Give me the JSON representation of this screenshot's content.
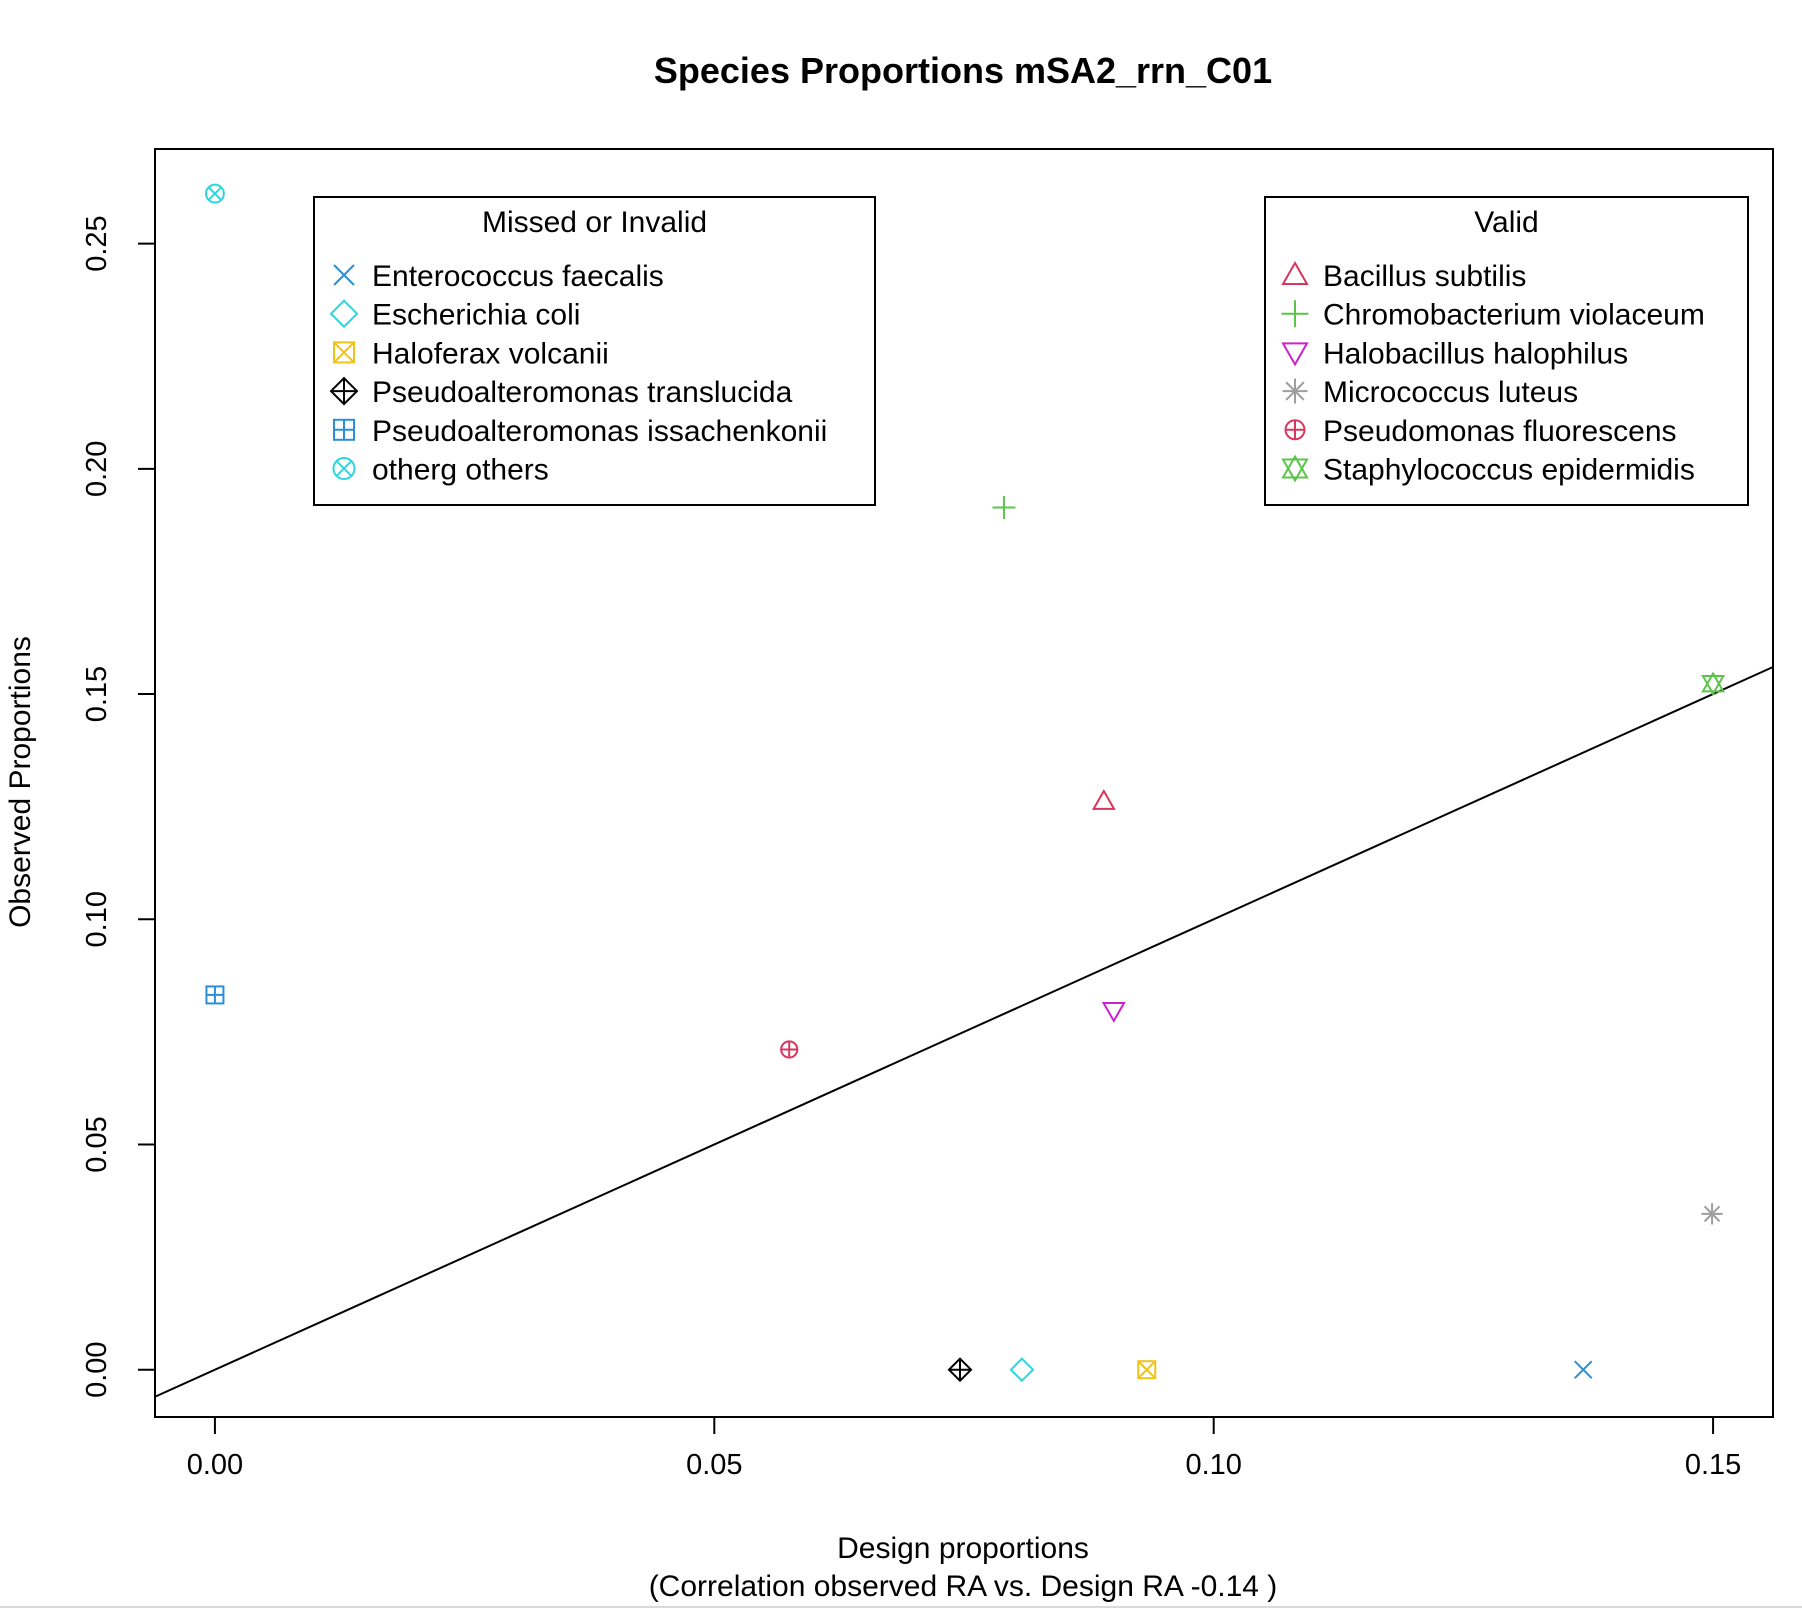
{
  "chart_data": {
    "type": "scatter",
    "title": "Species Proportions mSA2_rrn_C01",
    "xlabel": "Design proportions",
    "subtitle": "(Correlation observed RA vs. Design RA  -0.14 )",
    "ylabel": "Observed Proportions",
    "xlim": [
      -0.006,
      0.156
    ],
    "ylim": [
      -0.0105,
      0.271
    ],
    "x_ticks": [
      0.0,
      0.05,
      0.1,
      0.15
    ],
    "x_tick_labels": [
      "0.00",
      "0.05",
      "0.10",
      "0.15"
    ],
    "y_ticks": [
      0.0,
      0.05,
      0.1,
      0.15,
      0.2,
      0.25
    ],
    "y_tick_labels": [
      "0.00",
      "0.05",
      "0.10",
      "0.15",
      "0.20",
      "0.25"
    ],
    "reference_line": {
      "slope": 1,
      "intercept": 0
    },
    "grid": false,
    "legends": [
      {
        "title": "Missed or Invalid",
        "position": "top-left",
        "entries": [
          {
            "label": "Enterococcus faecalis",
            "symbol": "x",
            "color": "#2a8fd8"
          },
          {
            "label": "Escherichia coli",
            "symbol": "diamond",
            "color": "#2fd5dd"
          },
          {
            "label": "Haloferax volcanii",
            "symbol": "square-x",
            "color": "#f0c21a"
          },
          {
            "label": "Pseudoalteromonas translucida",
            "symbol": "diamond-plus",
            "color": "#000000"
          },
          {
            "label": "Pseudoalteromonas issachenkonii",
            "symbol": "square-plus",
            "color": "#2a8fd8"
          },
          {
            "label": "otherg others",
            "symbol": "circle-x",
            "color": "#2fd5dd"
          }
        ]
      },
      {
        "title": "Valid",
        "position": "top-right",
        "entries": [
          {
            "label": "Bacillus subtilis",
            "symbol": "triangle-up",
            "color": "#d8365f"
          },
          {
            "label": "Chromobacterium violaceum",
            "symbol": "plus",
            "color": "#5cc44a"
          },
          {
            "label": "Halobacillus halophilus",
            "symbol": "triangle-down",
            "color": "#cc22cc"
          },
          {
            "label": "Micrococcus luteus",
            "symbol": "asterisk",
            "color": "#9e9e9e"
          },
          {
            "label": "Pseudomonas fluorescens",
            "symbol": "circle-plus",
            "color": "#d8365f"
          },
          {
            "label": "Staphylococcus epidermidis",
            "symbol": "star-of-david",
            "color": "#5cc44a"
          }
        ]
      }
    ],
    "points": [
      {
        "species": "Enterococcus faecalis",
        "x": 0.137,
        "y": 0.0,
        "symbol": "x",
        "color": "#2a8fd8"
      },
      {
        "species": "Escherichia coli",
        "x": 0.0808,
        "y": 0.0,
        "symbol": "diamond",
        "color": "#2fd5dd"
      },
      {
        "species": "Haloferax volcanii",
        "x": 0.0933,
        "y": 0.0,
        "symbol": "square-x",
        "color": "#f0c21a"
      },
      {
        "species": "Pseudoalteromonas translucida",
        "x": 0.0746,
        "y": 0.0,
        "symbol": "diamond-plus",
        "color": "#000000"
      },
      {
        "species": "Pseudoalteromonas issachenkonii",
        "x": 0.0,
        "y": 0.0832,
        "symbol": "square-plus",
        "color": "#2a8fd8"
      },
      {
        "species": "otherg others",
        "x": 0.0,
        "y": 0.2611,
        "symbol": "circle-x",
        "color": "#2fd5dd"
      },
      {
        "species": "Bacillus subtilis",
        "x": 0.089,
        "y": 0.1262,
        "symbol": "triangle-up",
        "color": "#d8365f"
      },
      {
        "species": "Chromobacterium violaceum",
        "x": 0.079,
        "y": 0.1914,
        "symbol": "plus",
        "color": "#5cc44a"
      },
      {
        "species": "Halobacillus halophilus",
        "x": 0.09,
        "y": 0.0797,
        "symbol": "triangle-down",
        "color": "#cc22cc"
      },
      {
        "species": "Micrococcus luteus",
        "x": 0.1499,
        "y": 0.0346,
        "symbol": "asterisk",
        "color": "#9e9e9e"
      },
      {
        "species": "Pseudomonas fluorescens",
        "x": 0.0575,
        "y": 0.0711,
        "symbol": "circle-plus",
        "color": "#d8365f"
      },
      {
        "species": "Staphylococcus epidermidis",
        "x": 0.15,
        "y": 0.1523,
        "symbol": "star-of-david",
        "color": "#5cc44a"
      }
    ]
  }
}
